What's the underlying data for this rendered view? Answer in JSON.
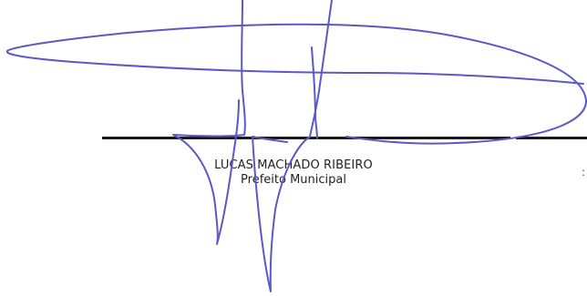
{
  "signature_block": {
    "name": "LUCAS MACHADO RIBEIRO",
    "title": "Prefeito Municipal"
  },
  "colors": {
    "ink": "#5b58c8",
    "line": "#1a1a1a",
    "text": "#222222"
  }
}
